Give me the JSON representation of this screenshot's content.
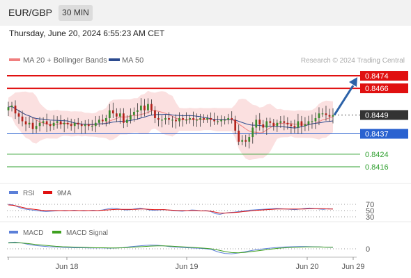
{
  "header": {
    "symbol": "EUR/GBP",
    "timeframe": "30 MIN",
    "datetime": "Thursday, June 20, 2024 6:55:23 AM CET"
  },
  "colors": {
    "resistance": "#e01010",
    "support": "#2a62d0",
    "target_green": "#30a030",
    "ma20": "#f07f7f",
    "ma50": "#2c4b8f",
    "bollinger_fill": "#fbe0e0",
    "arrow": "#2c62a8",
    "rsi": "#5b7fd8",
    "rsi_ma": "#e01010",
    "macd": "#5b7fd8",
    "macd_signal": "#3fa020",
    "current_price_box": "#333333"
  },
  "chart_data": [
    {
      "type": "candlestick",
      "legend": [
        "MA 20 + Bollinger Bands",
        "MA 50"
      ],
      "watermark": "Research © 2024 Trading Central",
      "ylim": [
        0.8408,
        0.8478
      ],
      "levels": [
        {
          "value": 0.8474,
          "label": "0.8474",
          "kind": "resistance"
        },
        {
          "value": 0.8466,
          "label": "0.8466",
          "kind": "resistance"
        },
        {
          "value": 0.8449,
          "label": "0.8449",
          "kind": "current"
        },
        {
          "value": 0.8437,
          "label": "0.8437",
          "kind": "support"
        },
        {
          "value": 0.8424,
          "label": "0.8424",
          "kind": "target"
        },
        {
          "value": 0.8416,
          "label": "0.8416",
          "kind": "target"
        }
      ],
      "closes": [
        0.8454,
        0.8455,
        0.845,
        0.8448,
        0.8445,
        0.8443,
        0.8444,
        0.844,
        0.8442,
        0.8444,
        0.8445,
        0.8443,
        0.8442,
        0.8444,
        0.8445,
        0.8443,
        0.8444,
        0.8443,
        0.8442,
        0.8444,
        0.8443,
        0.8442,
        0.8443,
        0.8442,
        0.8442,
        0.8444,
        0.8446,
        0.8445,
        0.8447,
        0.8452,
        0.845,
        0.8448,
        0.845,
        0.8444,
        0.8446,
        0.8449,
        0.8451,
        0.8452,
        0.8455,
        0.8452,
        0.8456,
        0.8452,
        0.8447,
        0.8446,
        0.8446,
        0.8447,
        0.8446,
        0.8446,
        0.8445,
        0.8447,
        0.8446,
        0.8446,
        0.8447,
        0.8446,
        0.8446,
        0.8447,
        0.8446,
        0.8447,
        0.8446,
        0.8445,
        0.8445,
        0.8446,
        0.8446,
        0.8447,
        0.8446,
        0.8439,
        0.8432,
        0.8433,
        0.8432,
        0.8435,
        0.8441,
        0.8446,
        0.8443,
        0.8441,
        0.8445,
        0.8444,
        0.8442,
        0.8444,
        0.8445,
        0.8444,
        0.8443,
        0.8442,
        0.8441,
        0.8445,
        0.8442,
        0.8443,
        0.8445,
        0.8445,
        0.8447,
        0.845,
        0.845,
        0.8449,
        0.8448,
        0.8449
      ],
      "arrow": {
        "from": 0.8449,
        "to": 0.8474
      },
      "x_ticks": [
        "Jun 18",
        "Jun 19",
        "Jun 20",
        "Jun 29"
      ]
    },
    {
      "type": "line",
      "legend": [
        "RSI",
        "9MA"
      ],
      "y_ticks": [
        "70",
        "50",
        "30"
      ],
      "rsi": [
        70,
        68,
        62,
        56,
        54,
        52,
        50,
        48,
        47,
        48,
        49,
        50,
        49,
        50,
        51,
        50,
        49,
        50,
        51,
        50,
        52,
        55,
        58,
        57,
        54,
        52,
        53,
        56,
        58,
        55,
        52,
        51,
        52,
        53,
        52,
        50,
        49,
        48,
        50,
        52,
        51,
        49,
        50,
        47,
        40,
        38,
        42,
        44,
        45,
        47,
        49,
        51,
        52,
        53,
        54,
        55,
        56,
        57,
        56,
        55,
        54,
        53,
        55,
        57,
        58,
        57,
        55,
        54,
        56,
        55
      ],
      "rsi_ma": [
        68,
        67,
        64,
        60,
        57,
        55,
        53,
        51,
        50,
        50,
        50,
        50,
        50,
        50,
        50,
        50,
        50,
        50,
        50,
        50,
        51,
        52,
        53,
        54,
        54,
        54,
        54,
        54,
        55,
        55,
        54,
        53,
        53,
        53,
        52,
        51,
        50,
        50,
        50,
        50,
        50,
        49,
        49,
        48,
        45,
        42,
        42,
        43,
        44,
        45,
        47,
        48,
        50,
        51,
        52,
        53,
        54,
        55,
        55,
        55,
        55,
        55,
        55,
        55,
        56,
        56,
        56,
        56,
        55,
        55
      ]
    },
    {
      "type": "line",
      "legend": [
        "MACD",
        "MACD Signal"
      ],
      "y_ticks": [
        "0"
      ],
      "macd": [
        3,
        3.2,
        2.8,
        2.1,
        1.6,
        1.3,
        1.0,
        0.9,
        0.7,
        0.6,
        0.5,
        0.5,
        0.4,
        0.4,
        0.4,
        0.3,
        0.4,
        0.6,
        1.0,
        1.3,
        1.6,
        1.8,
        1.7,
        1.4,
        1.0,
        0.8,
        0.6,
        0.4,
        0.3,
        0.1,
        -0.3,
        -1.5,
        -2.2,
        -2.4,
        -2.0,
        -1.4,
        -0.8,
        -0.3,
        0.1,
        0.4,
        0.7,
        0.9,
        1.0,
        1.1,
        1.1,
        1.0,
        0.9,
        0.8,
        0.7
      ],
      "signal": [
        2.8,
        2.9,
        2.8,
        2.5,
        2.1,
        1.8,
        1.5,
        1.2,
        1.0,
        0.9,
        0.8,
        0.7,
        0.6,
        0.5,
        0.5,
        0.4,
        0.4,
        0.5,
        0.7,
        0.9,
        1.1,
        1.3,
        1.4,
        1.4,
        1.3,
        1.1,
        0.9,
        0.7,
        0.5,
        0.3,
        0.0,
        -0.6,
        -1.3,
        -1.8,
        -1.9,
        -1.7,
        -1.3,
        -0.9,
        -0.5,
        -0.1,
        0.3,
        0.5,
        0.7,
        0.8,
        0.9,
        0.9,
        0.9,
        0.8,
        0.8
      ]
    }
  ]
}
